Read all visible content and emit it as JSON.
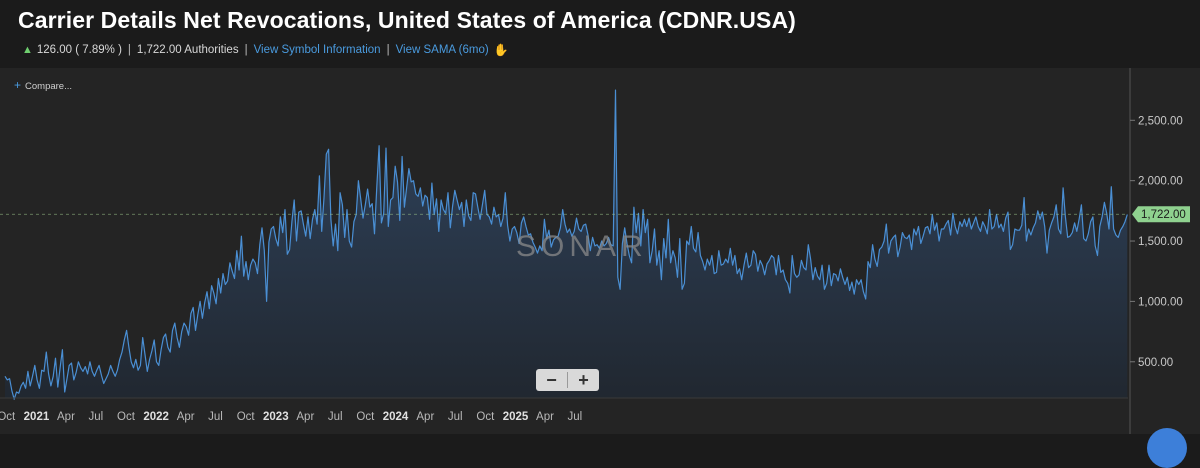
{
  "header": {
    "title": "Carrier Details Net Revocations, United States of America (CDNR.USA)",
    "change": "126.00 ( 7.89% )",
    "value_text": "1,722.00 Authorities",
    "link_symbol": "View Symbol Information",
    "link_sama": "View SAMA (6mo)",
    "up_icon": "arrow-up-icon",
    "sama_icon": "hand-wave-icon"
  },
  "controls": {
    "compare_label": "Compare...",
    "zoom_out_label": "−",
    "zoom_in_label": "+"
  },
  "watermark": "SONAR",
  "colors": {
    "line": "#4a8fd4",
    "up": "#6fcf6f",
    "link": "#4a9bdf",
    "last_badge": "#8fd18f"
  },
  "chart_data": {
    "type": "area",
    "title": "Carrier Details Net Revocations, United States of America (CDNR.USA)",
    "x_start": "2020-09-27",
    "x_step_days": 7,
    "values": [
      380,
      350,
      360,
      260,
      190,
      250,
      240,
      300,
      330,
      280,
      420,
      300,
      380,
      470,
      350,
      280,
      430,
      420,
      580,
      400,
      300,
      380,
      530,
      290,
      450,
      600,
      250,
      360,
      470,
      490,
      350,
      410,
      500,
      450,
      420,
      460,
      400,
      500,
      420,
      380,
      430,
      470,
      390,
      320,
      360,
      400,
      470,
      420,
      380,
      430,
      520,
      580,
      680,
      760,
      620,
      500,
      450,
      520,
      430,
      470,
      700,
      560,
      420,
      520,
      590,
      680,
      500,
      470,
      600,
      700,
      730,
      620,
      580,
      760,
      820,
      700,
      620,
      750,
      820,
      790,
      720,
      900,
      950,
      760,
      890,
      1000,
      860,
      990,
      1080,
      940,
      1130,
      1070,
      980,
      1190,
      1070,
      1230,
      1140,
      1170,
      1320,
      1250,
      1190,
      1420,
      1260,
      1540,
      1210,
      1330,
      1180,
      1300,
      1350,
      1320,
      1230,
      1470,
      1610,
      1420,
      1000,
      1490,
      1600,
      1620,
      1520,
      1460,
      1700,
      1570,
      1760,
      1390,
      1430,
      1660,
      1840,
      1500,
      1740,
      1750,
      1640,
      1540,
      1700,
      1520,
      1680,
      1760,
      1640,
      2040,
      1580,
      1860,
      2220,
      2260,
      1680,
      1460,
      1640,
      1420,
      1900,
      1800,
      1530,
      1760,
      1500,
      1450,
      1660,
      1720,
      2000,
      1850,
      1690,
      1800,
      1930,
      1780,
      1810,
      1560,
      1950,
      2290,
      1650,
      1730,
      2270,
      1620,
      1840,
      1860,
      2120,
      1990,
      1670,
      2200,
      1780,
      1940,
      2100,
      1990,
      2000,
      1890,
      1870,
      1940,
      1790,
      1880,
      1860,
      1680,
      1980,
      1720,
      1850,
      1580,
      1840,
      1760,
      1730,
      1900,
      1610,
      1790,
      1920,
      1840,
      1760,
      1820,
      1620,
      1840,
      1710,
      1670,
      1900,
      1890,
      1780,
      1680,
      1800,
      1920,
      1720,
      1700,
      1640,
      1780,
      1700,
      1720,
      1620,
      1690,
      1900,
      1630,
      1500,
      1600,
      1620,
      1570,
      1480,
      1650,
      1700,
      1620,
      1550,
      1560,
      1490,
      1450,
      1400,
      1460,
      1420,
      1680,
      1520,
      1590,
      1450,
      1510,
      1530,
      1540,
      1610,
      1760,
      1640,
      1570,
      1600,
      1540,
      1580,
      1690,
      1600,
      1580,
      1630,
      1640,
      1550,
      1420,
      1530,
      1460,
      1470,
      1440,
      1500,
      1460,
      1480,
      1530,
      1470,
      1460,
      2750,
      1200,
      1100,
      1480,
      1610,
      1480,
      1380,
      1320,
      1780,
      1570,
      1730,
      1460,
      1760,
      1570,
      1680,
      1320,
      1420,
      1600,
      1300,
      1420,
      1180,
      1520,
      1360,
      1680,
      1320,
      1420,
      1360,
      1200,
      1520,
      1100,
      1150,
      1500,
      1470,
      1620,
      1440,
      1410,
      1570,
      1380,
      1330,
      1260,
      1350,
      1300,
      1380,
      1230,
      1240,
      1420,
      1300,
      1310,
      1350,
      1320,
      1440,
      1300,
      1380,
      1230,
      1270,
      1180,
      1300,
      1400,
      1280,
      1300,
      1420,
      1390,
      1250,
      1340,
      1300,
      1220,
      1310,
      1340,
      1380,
      1360,
      1220,
      1380,
      1240,
      1260,
      1180,
      1150,
      1070,
      1380,
      1230,
      1200,
      1220,
      1340,
      1280,
      1260,
      1470,
      1350,
      1180,
      1280,
      1210,
      1180,
      1300,
      1100,
      1150,
      1300,
      1130,
      1230,
      1220,
      1170,
      1270,
      1200,
      1140,
      1200,
      1090,
      1160,
      1060,
      1180,
      1140,
      1180,
      1080,
      1020,
      1330,
      1280,
      1470,
      1350,
      1290,
      1430,
      1450,
      1500,
      1640,
      1400,
      1500,
      1530,
      1550,
      1370,
      1450,
      1570,
      1530,
      1520,
      1550,
      1430,
      1600,
      1550,
      1620,
      1480,
      1540,
      1610,
      1620,
      1560,
      1720,
      1590,
      1650,
      1500,
      1600,
      1600,
      1640,
      1670,
      1550,
      1730,
      1620,
      1560,
      1660,
      1620,
      1680,
      1620,
      1690,
      1600,
      1650,
      1700,
      1620,
      1580,
      1660,
      1620,
      1560,
      1760,
      1600,
      1620,
      1720,
      1610,
      1640,
      1580,
      1690,
      1740,
      1430,
      1470,
      1600,
      1590,
      1590,
      1630,
      1860,
      1500,
      1600,
      1550,
      1610,
      1650,
      1750,
      1680,
      1740,
      1620,
      1400,
      1590,
      1650,
      1700,
      1800,
      1600,
      1560,
      1940,
      1700,
      1530,
      1540,
      1570,
      1650,
      1580,
      1680,
      1800,
      1520,
      1500,
      1560,
      1660,
      1700,
      1460,
      1380,
      1620,
      1700,
      1820,
      1730,
      1600,
      1950,
      1600,
      1550,
      1530,
      1590,
      1620,
      1660,
      1720
    ],
    "ylim": [
      200,
      2900
    ],
    "y_ticks": [
      "500.00",
      "1,000.00",
      "1,500.00",
      "2,000.00",
      "2,500.00"
    ],
    "y_tick_values": [
      500,
      1000,
      1500,
      2000,
      2500
    ],
    "x_tick_labels": [
      "Oct",
      "2021",
      "Apr",
      "Jul",
      "Oct",
      "2022",
      "Apr",
      "Jul",
      "Oct",
      "2023",
      "Apr",
      "Jul",
      "Oct",
      "2024",
      "Apr",
      "Jul",
      "Oct",
      "2025",
      "Apr",
      "Jul"
    ],
    "x_tick_dates": [
      "2020-10-01",
      "2021-01-01",
      "2021-04-01",
      "2021-07-01",
      "2021-10-01",
      "2022-01-01",
      "2022-04-01",
      "2022-07-01",
      "2022-10-01",
      "2023-01-01",
      "2023-04-01",
      "2023-07-01",
      "2023-10-01",
      "2024-01-01",
      "2024-04-01",
      "2024-07-01",
      "2024-10-01",
      "2025-01-01",
      "2025-04-01",
      "2025-07-01"
    ],
    "last_value": 1722,
    "last_label": "1,722.00",
    "grid": false
  }
}
